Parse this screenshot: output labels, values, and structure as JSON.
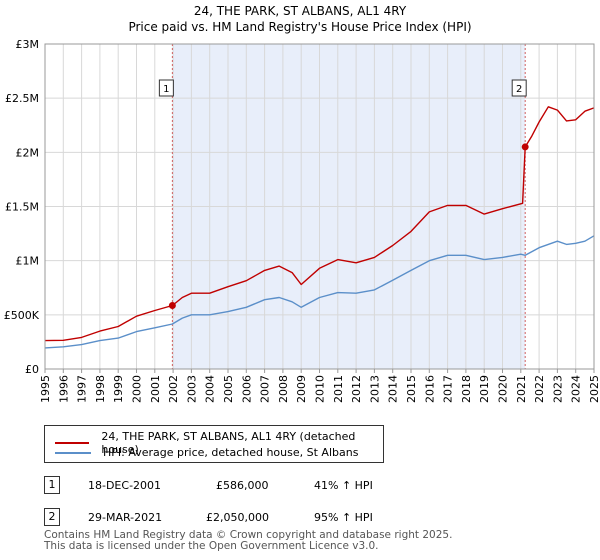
{
  "title": "24, THE PARK, ST ALBANS, AL1 4RY",
  "subtitle": "Price paid vs. HM Land Registry's House Price Index (HPI)",
  "chart_data": {
    "type": "line",
    "xlim": [
      1995,
      2025
    ],
    "ylim": [
      0,
      3000000
    ],
    "ytick_values": [
      0,
      500000,
      1000000,
      1500000,
      2000000,
      2500000,
      3000000
    ],
    "ytick_labels": [
      "£0",
      "£500K",
      "£1M",
      "£1.5M",
      "£2M",
      "£2.5M",
      "£3M"
    ],
    "xtick_labels": [
      "1995",
      "1996",
      "1997",
      "1998",
      "1999",
      "2000",
      "2001",
      "2002",
      "2003",
      "2004",
      "2005",
      "2006",
      "2007",
      "2008",
      "2009",
      "2010",
      "2011",
      "2012",
      "2013",
      "2014",
      "2015",
      "2016",
      "2017",
      "2018",
      "2019",
      "2020",
      "2021",
      "2022",
      "2023",
      "2024",
      "2025"
    ],
    "shaded_period": [
      2001.96,
      2021.24
    ],
    "series": [
      {
        "name": "24, THE PARK, ST ALBANS, AL1 4RY (detached house)",
        "color": "#c00000",
        "points": [
          [
            1995,
            262000
          ],
          [
            1996,
            265000
          ],
          [
            1997,
            292000
          ],
          [
            1998,
            350000
          ],
          [
            1999,
            392000
          ],
          [
            2000,
            487000
          ],
          [
            2001,
            540000
          ],
          [
            2001.96,
            586000
          ],
          [
            2002.5,
            660000
          ],
          [
            2003,
            700000
          ],
          [
            2004,
            700000
          ],
          [
            2005,
            760000
          ],
          [
            2006,
            815000
          ],
          [
            2007,
            910000
          ],
          [
            2007.8,
            950000
          ],
          [
            2008.5,
            890000
          ],
          [
            2009,
            780000
          ],
          [
            2010,
            930000
          ],
          [
            2011,
            1010000
          ],
          [
            2012,
            980000
          ],
          [
            2013,
            1030000
          ],
          [
            2014,
            1140000
          ],
          [
            2015,
            1270000
          ],
          [
            2016,
            1450000
          ],
          [
            2017,
            1510000
          ],
          [
            2018,
            1510000
          ],
          [
            2019,
            1430000
          ],
          [
            2020,
            1480000
          ],
          [
            2021.1,
            1530000
          ],
          [
            2021.24,
            2050000
          ],
          [
            2021.6,
            2150000
          ],
          [
            2022,
            2280000
          ],
          [
            2022.5,
            2420000
          ],
          [
            2023,
            2390000
          ],
          [
            2023.5,
            2290000
          ],
          [
            2024,
            2300000
          ],
          [
            2024.5,
            2380000
          ],
          [
            2025,
            2410000
          ]
        ]
      },
      {
        "name": "HPI: Average price, detached house, St Albans",
        "color": "#5b8fc9",
        "points": [
          [
            1995,
            195000
          ],
          [
            1996,
            205000
          ],
          [
            1997,
            225000
          ],
          [
            1998,
            262000
          ],
          [
            1999,
            285000
          ],
          [
            2000,
            345000
          ],
          [
            2001,
            380000
          ],
          [
            2001.96,
            415000
          ],
          [
            2002.5,
            470000
          ],
          [
            2003,
            500000
          ],
          [
            2004,
            500000
          ],
          [
            2005,
            530000
          ],
          [
            2006,
            570000
          ],
          [
            2007,
            640000
          ],
          [
            2007.8,
            660000
          ],
          [
            2008.5,
            620000
          ],
          [
            2009,
            570000
          ],
          [
            2010,
            660000
          ],
          [
            2011,
            705000
          ],
          [
            2012,
            700000
          ],
          [
            2013,
            730000
          ],
          [
            2014,
            820000
          ],
          [
            2015,
            910000
          ],
          [
            2016,
            1000000
          ],
          [
            2017,
            1050000
          ],
          [
            2018,
            1050000
          ],
          [
            2019,
            1010000
          ],
          [
            2020,
            1030000
          ],
          [
            2021,
            1060000
          ],
          [
            2021.24,
            1050000
          ],
          [
            2022,
            1120000
          ],
          [
            2023,
            1180000
          ],
          [
            2023.5,
            1150000
          ],
          [
            2024,
            1160000
          ],
          [
            2024.5,
            1180000
          ],
          [
            2025,
            1230000
          ]
        ]
      }
    ],
    "transactions": [
      {
        "num": "1",
        "x": 2001.96,
        "y": 586000,
        "date": "18-DEC-2001",
        "price": "£586,000",
        "hpi": "41% ↑ HPI"
      },
      {
        "num": "2",
        "x": 2021.24,
        "y": 2050000,
        "date": "29-MAR-2021",
        "price": "£2,050,000",
        "hpi": "95% ↑ HPI"
      }
    ]
  },
  "legend": {
    "property": "24, THE PARK, ST ALBANS, AL1 4RY (detached house)",
    "hpi": "HPI: Average price, detached house, St Albans"
  },
  "footer": {
    "line1": "Contains HM Land Registry data © Crown copyright and database right 2025.",
    "line2": "This data is licensed under the Open Government Licence v3.0."
  }
}
